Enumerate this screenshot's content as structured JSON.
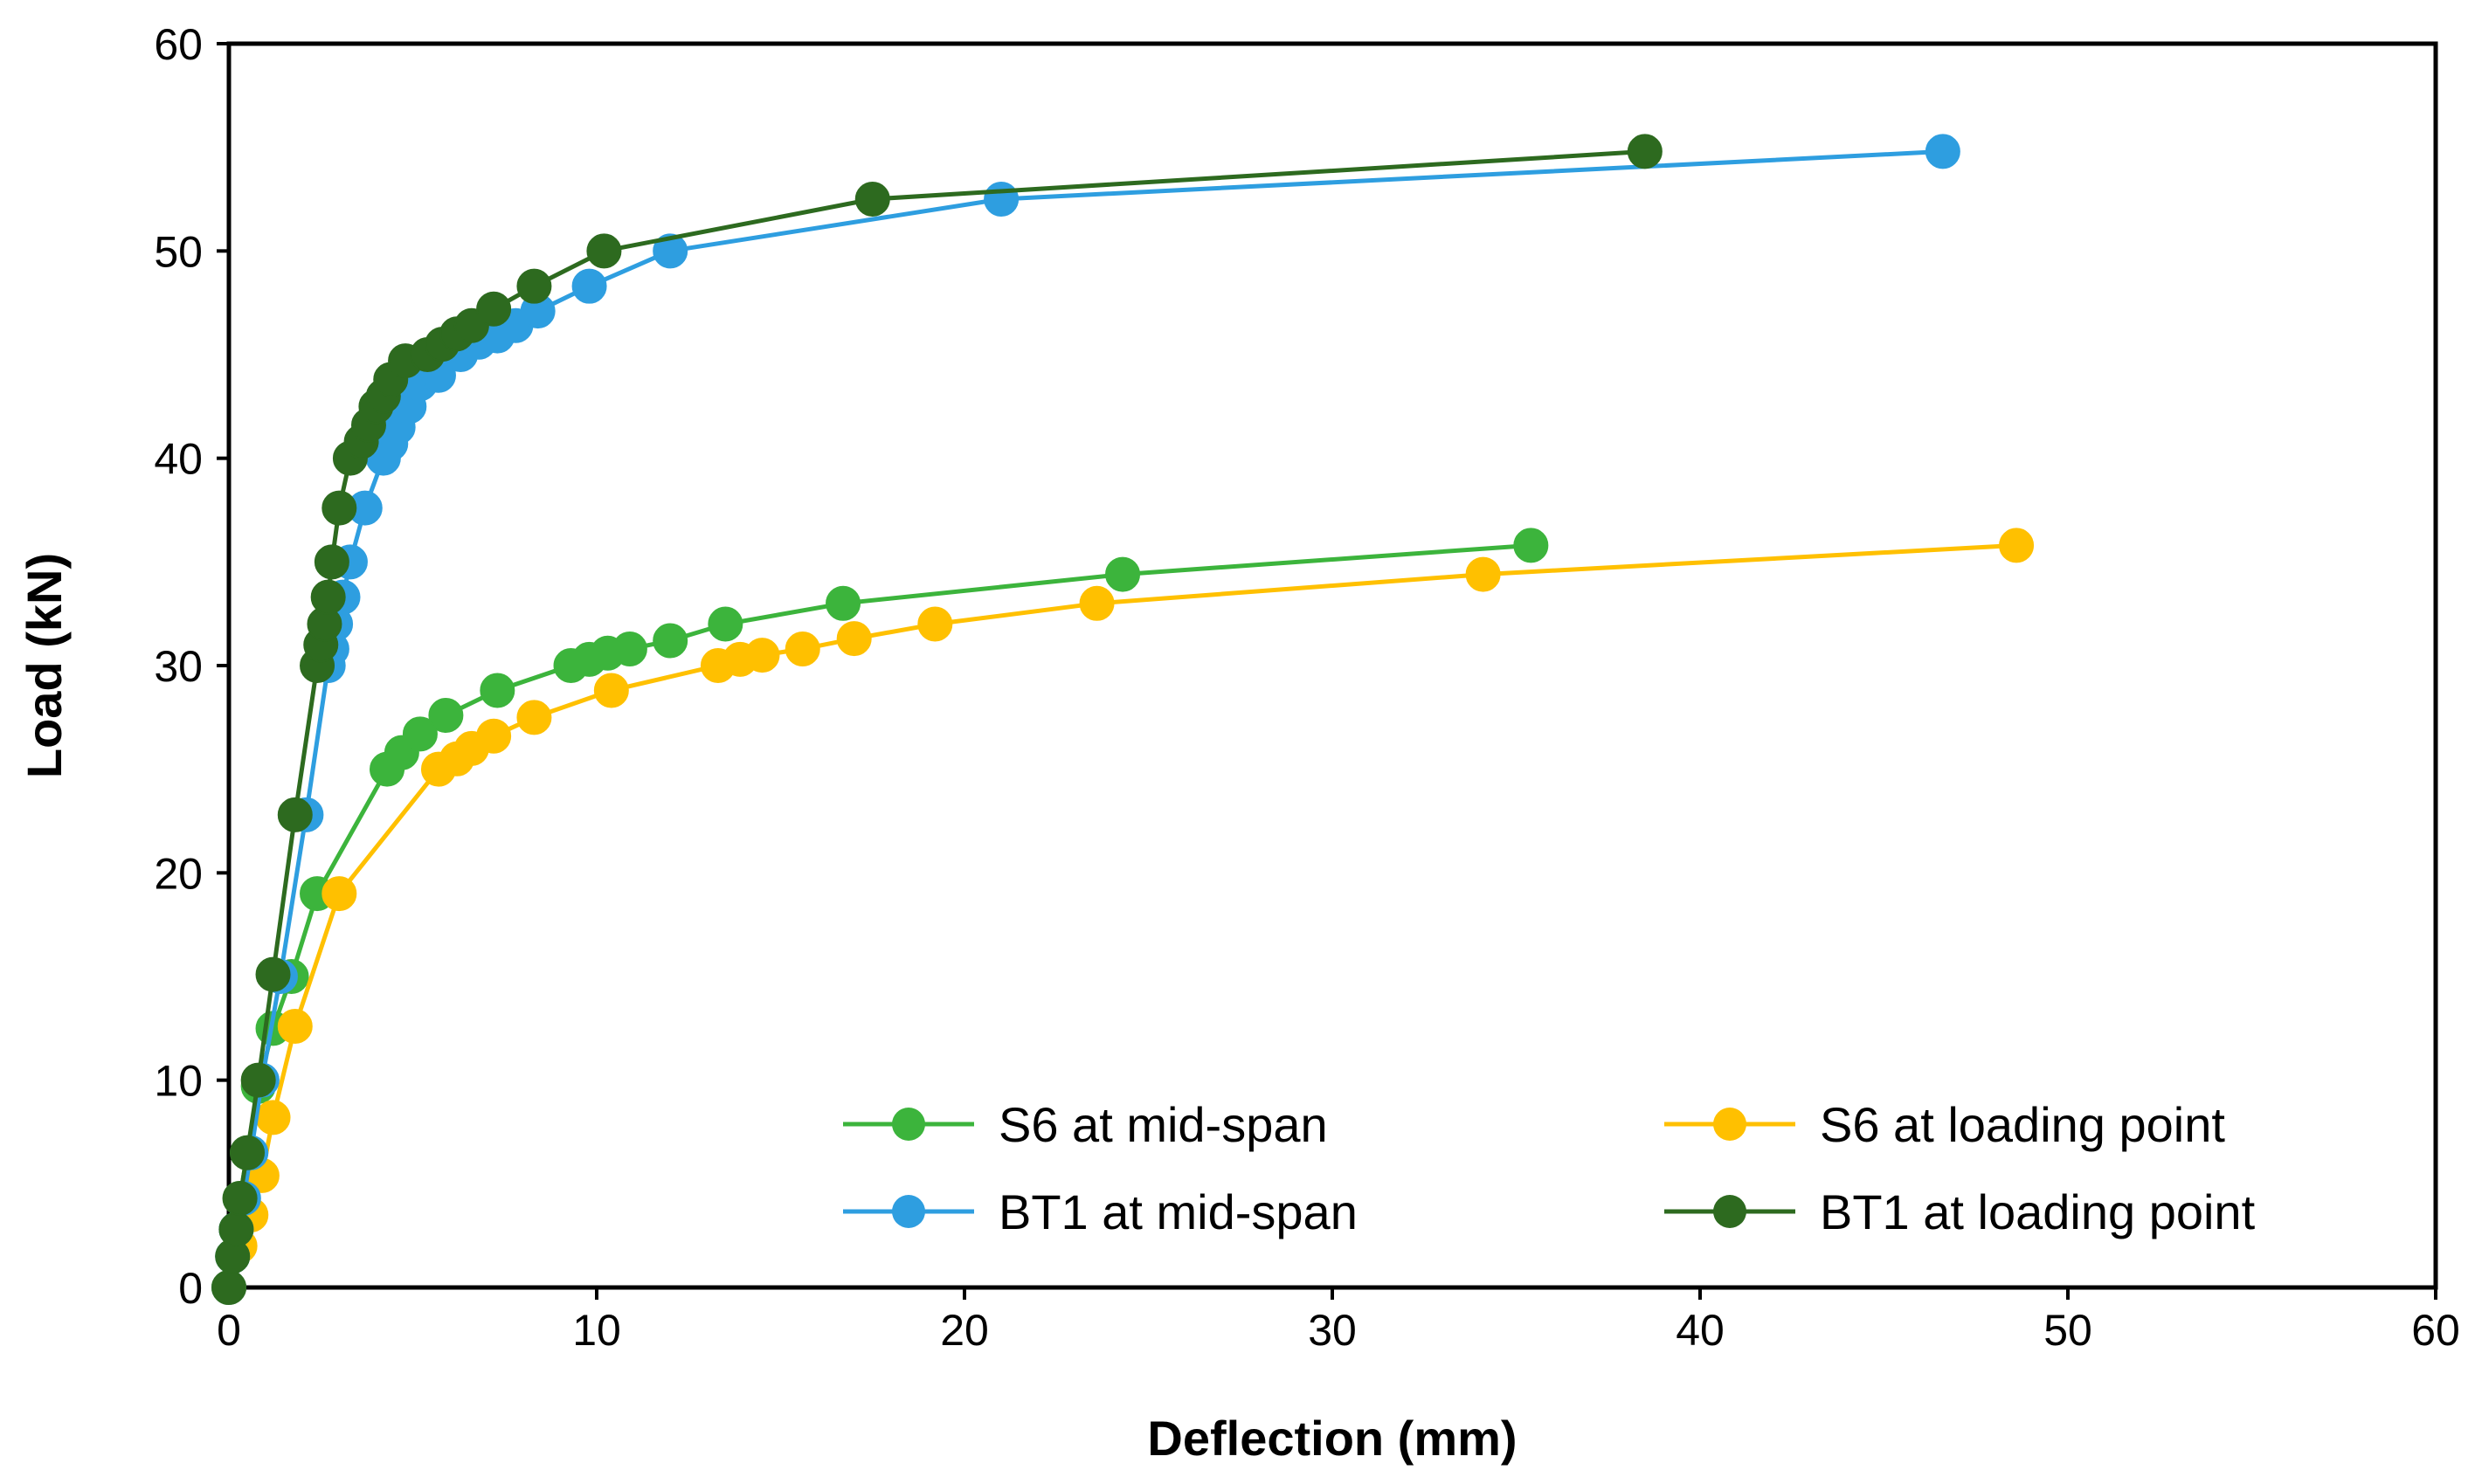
{
  "chart_data": {
    "type": "line",
    "title": "",
    "xlabel": "Deflection (mm)",
    "ylabel": "Load (kN)",
    "xlim": [
      0,
      60
    ],
    "ylim": [
      0,
      60
    ],
    "xticks": [
      0,
      10,
      20,
      30,
      40,
      50,
      60
    ],
    "yticks": [
      0,
      10,
      20,
      30,
      40,
      50,
      60
    ],
    "grid": false,
    "legend_position": "bottom-right",
    "series": [
      {
        "name": "S6 at mid-span",
        "color": "#3cb43c",
        "x": [
          0,
          0.1,
          0.2,
          0.3,
          0.5,
          0.8,
          1.2,
          1.7,
          2.4,
          4.3,
          4.7,
          5.2,
          5.9,
          7.3,
          9.3,
          9.8,
          10.3,
          10.9,
          12.0,
          13.5,
          16.7,
          24.3,
          35.4
        ],
        "y": [
          0,
          1.5,
          2.8,
          4.3,
          6.5,
          9.7,
          12.5,
          15.0,
          19.0,
          25.0,
          25.8,
          26.7,
          27.6,
          28.8,
          30.0,
          30.3,
          30.6,
          30.8,
          31.2,
          32.0,
          33.0,
          34.4,
          35.8
        ]
      },
      {
        "name": "S6 at loading point",
        "color": "#ffc000",
        "x": [
          0,
          0.3,
          0.6,
          0.9,
          1.2,
          1.8,
          3.0,
          5.7,
          6.2,
          6.6,
          7.2,
          8.3,
          10.4,
          13.3,
          13.9,
          14.5,
          15.6,
          17.0,
          19.2,
          23.6,
          34.1,
          48.6
        ],
        "y": [
          0,
          2.0,
          3.5,
          5.4,
          8.2,
          12.6,
          19.0,
          25.0,
          25.5,
          26.0,
          26.6,
          27.5,
          28.8,
          30.0,
          30.3,
          30.5,
          30.8,
          31.3,
          32.0,
          33.0,
          34.4,
          35.8
        ]
      },
      {
        "name": "BT1 at mid-span",
        "color": "#2e9ee0",
        "x": [
          0,
          0.1,
          0.2,
          0.4,
          0.6,
          0.9,
          1.4,
          2.1,
          2.7,
          2.8,
          2.9,
          3.1,
          3.3,
          3.7,
          4.2,
          4.4,
          4.6,
          4.9,
          5.2,
          5.7,
          6.3,
          6.8,
          7.3,
          7.8,
          8.4,
          9.8,
          12.0,
          21.0,
          46.6
        ],
        "y": [
          0,
          1.5,
          2.8,
          4.3,
          6.5,
          10.0,
          15.0,
          22.8,
          30.0,
          30.8,
          32.0,
          33.3,
          35.0,
          37.6,
          40.0,
          40.7,
          41.5,
          42.5,
          43.6,
          44.0,
          45.0,
          45.6,
          45.9,
          46.4,
          47.1,
          48.3,
          50.0,
          52.5,
          54.8
        ]
      },
      {
        "name": "BT1 at loading point",
        "color": "#2d6a1f",
        "x": [
          0,
          0.1,
          0.2,
          0.3,
          0.5,
          0.8,
          1.2,
          1.8,
          2.4,
          2.5,
          2.6,
          2.7,
          2.8,
          3.0,
          3.3,
          3.6,
          3.8,
          4.0,
          4.2,
          4.4,
          4.8,
          5.4,
          5.8,
          6.2,
          6.6,
          7.2,
          8.3,
          10.2,
          17.5,
          38.5
        ],
        "y": [
          0,
          1.5,
          2.8,
          4.3,
          6.5,
          10.0,
          15.1,
          22.8,
          30.0,
          31.0,
          32.0,
          33.3,
          35.0,
          37.6,
          40.0,
          40.8,
          41.6,
          42.5,
          43.0,
          43.8,
          44.7,
          45.0,
          45.5,
          46.0,
          46.4,
          47.2,
          48.3,
          50.0,
          52.5,
          54.8
        ]
      }
    ]
  }
}
